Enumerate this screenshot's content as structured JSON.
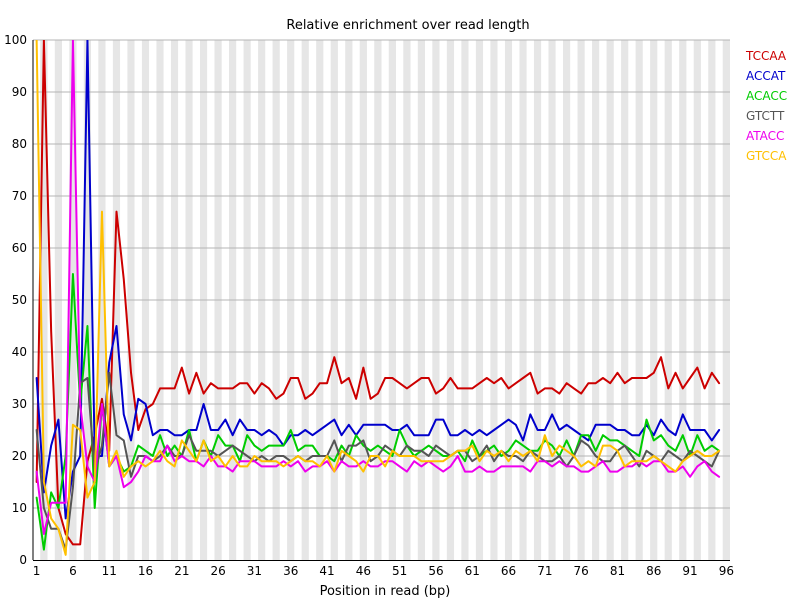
{
  "chart_data": {
    "type": "line",
    "title": "Relative enrichment over read length",
    "xlabel": "Position in read (bp)",
    "ylabel": "",
    "ylim": [
      0,
      100
    ],
    "xlim": [
      1,
      96
    ],
    "y_ticks": [
      0,
      10,
      20,
      30,
      40,
      50,
      60,
      70,
      80,
      90,
      100
    ],
    "x_ticks": [
      1,
      6,
      11,
      16,
      21,
      26,
      31,
      36,
      41,
      46,
      51,
      56,
      61,
      66,
      71,
      76,
      81,
      86,
      91,
      96
    ],
    "grid": true,
    "legend_position": "top-right",
    "series": [
      {
        "name": "TCCAA",
        "color": "#cc0000",
        "values": [
          15,
          100,
          44,
          10,
          5,
          3,
          3,
          19,
          24,
          31,
          21,
          67,
          54,
          36,
          25,
          29,
          30,
          33,
          33,
          33,
          37,
          32,
          36,
          32,
          34,
          33,
          33,
          33,
          34,
          34,
          32,
          34,
          33,
          31,
          32,
          35,
          35,
          31,
          32,
          34,
          34,
          39,
          34,
          35,
          31,
          37,
          31,
          32,
          35,
          35,
          34,
          33,
          34,
          35,
          35,
          32,
          33,
          35,
          33,
          33,
          33,
          34,
          35,
          34,
          35,
          33,
          34,
          35,
          36,
          32,
          33,
          33,
          32,
          34,
          33,
          32,
          34,
          34,
          35,
          34,
          36,
          34,
          35,
          35,
          35,
          36,
          39,
          33,
          36,
          33,
          35,
          37,
          33,
          36,
          34
        ]
      },
      {
        "name": "ACCAT",
        "color": "#0000cc",
        "values": [
          35,
          13,
          22,
          27,
          8,
          17,
          20,
          100,
          20,
          20,
          38,
          45,
          28,
          23,
          31,
          30,
          24,
          25,
          25,
          24,
          24,
          25,
          25,
          30,
          25,
          25,
          27,
          24,
          27,
          25,
          25,
          24,
          25,
          24,
          22,
          24,
          24,
          25,
          24,
          25,
          26,
          27,
          24,
          26,
          24,
          26,
          26,
          26,
          26,
          25,
          25,
          26,
          24,
          24,
          24,
          27,
          27,
          24,
          24,
          25,
          24,
          25,
          24,
          25,
          26,
          27,
          26,
          23,
          28,
          25,
          25,
          28,
          25,
          26,
          25,
          24,
          23,
          26,
          26,
          26,
          25,
          25,
          24,
          24,
          26,
          24,
          27,
          25,
          24,
          28,
          25,
          25,
          25,
          23,
          25
        ]
      },
      {
        "name": "ACACC",
        "color": "#00cc00",
        "values": [
          12,
          2,
          13,
          10,
          20,
          55,
          30,
          45,
          10,
          30,
          18,
          20,
          17,
          18,
          22,
          21,
          20,
          24,
          20,
          22,
          20,
          25,
          19,
          23,
          20,
          24,
          22,
          22,
          19,
          24,
          22,
          21,
          22,
          22,
          22,
          25,
          21,
          22,
          22,
          20,
          20,
          19,
          22,
          20,
          24,
          22,
          21,
          22,
          21,
          20,
          25,
          22,
          20,
          21,
          22,
          21,
          20,
          20,
          21,
          19,
          23,
          20,
          21,
          22,
          20,
          21,
          23,
          22,
          21,
          21,
          23,
          22,
          20,
          23,
          20,
          24,
          24,
          21,
          24,
          23,
          23,
          22,
          21,
          20,
          27,
          23,
          24,
          22,
          21,
          24,
          20,
          24,
          21,
          22,
          21
        ]
      },
      {
        "name": "GTCTT",
        "color": "#555555",
        "values": [
          25,
          10,
          6,
          6,
          2,
          14,
          34,
          35,
          17,
          22,
          36,
          24,
          23,
          16,
          20,
          20,
          19,
          20,
          22,
          20,
          20,
          24,
          21,
          21,
          21,
          20,
          21,
          22,
          21,
          20,
          19,
          20,
          19,
          20,
          20,
          19,
          20,
          19,
          20,
          20,
          20,
          23,
          19,
          22,
          22,
          23,
          19,
          20,
          22,
          21,
          20,
          22,
          21,
          21,
          20,
          22,
          21,
          20,
          21,
          21,
          19,
          20,
          22,
          19,
          21,
          20,
          20,
          19,
          21,
          20,
          19,
          19,
          20,
          18,
          20,
          23,
          22,
          20,
          19,
          19,
          21,
          22,
          20,
          18,
          21,
          20,
          19,
          21,
          20,
          19,
          21,
          20,
          19,
          18,
          21
        ]
      },
      {
        "name": "ATACC",
        "color": "#ee00ee",
        "values": [
          17,
          5,
          11,
          11,
          11,
          100,
          30,
          18,
          15,
          30,
          18,
          20,
          14,
          15,
          17,
          20,
          19,
          19,
          22,
          19,
          20,
          19,
          19,
          18,
          20,
          18,
          18,
          17,
          19,
          19,
          19,
          18,
          18,
          18,
          19,
          18,
          19,
          17,
          18,
          18,
          19,
          17,
          19,
          18,
          18,
          19,
          18,
          18,
          19,
          19,
          18,
          17,
          19,
          18,
          19,
          18,
          17,
          18,
          20,
          17,
          17,
          18,
          17,
          17,
          18,
          18,
          18,
          18,
          17,
          19,
          19,
          18,
          19,
          18,
          18,
          17,
          17,
          18,
          19,
          17,
          17,
          18,
          18,
          19,
          18,
          19,
          19,
          17,
          17,
          18,
          16,
          18,
          19,
          17,
          16
        ]
      },
      {
        "name": "GTCCA",
        "color": "#ffc000",
        "values": [
          100,
          15,
          8,
          6,
          1,
          26,
          25,
          12,
          15,
          67,
          18,
          21,
          16,
          18,
          19,
          18,
          19,
          21,
          19,
          18,
          23,
          21,
          19,
          23,
          19,
          20,
          18,
          20,
          18,
          18,
          20,
          19,
          19,
          19,
          18,
          19,
          20,
          19,
          19,
          18,
          20,
          17,
          21,
          20,
          19,
          17,
          20,
          20,
          18,
          21,
          20,
          20,
          20,
          19,
          19,
          19,
          19,
          20,
          21,
          21,
          22,
          19,
          21,
          20,
          21,
          19,
          21,
          20,
          21,
          19,
          24,
          20,
          22,
          21,
          20,
          18,
          19,
          18,
          22,
          22,
          21,
          18,
          19,
          19,
          19,
          20,
          19,
          18,
          17,
          19,
          20,
          21,
          20,
          20,
          21
        ]
      }
    ]
  }
}
